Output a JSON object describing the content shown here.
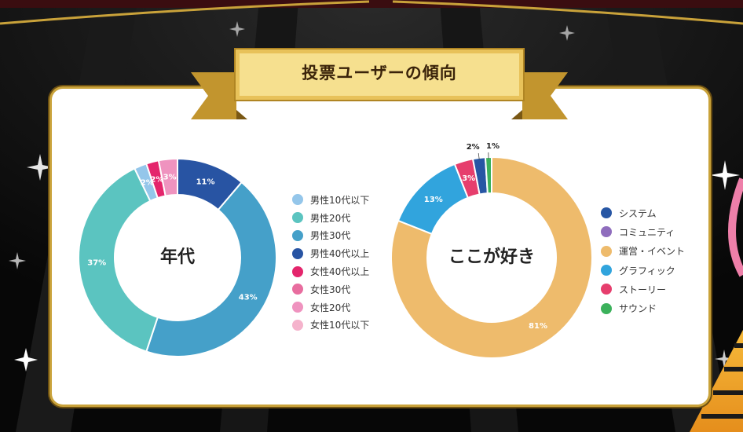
{
  "banner": {
    "title": "投票ユーザーの傾向"
  },
  "colors": {
    "card_border": "#c9a23a",
    "banner_gold": "#e8c25a"
  },
  "chart_data": [
    {
      "type": "pie",
      "title": "年代",
      "donut": true,
      "legend_position": "right",
      "categories": [
        "男性10代以下",
        "男性20代",
        "男性30代",
        "男性40代以上",
        "女性40代以上",
        "女性30代",
        "女性20代",
        "女性10代以下"
      ],
      "legend_colors": [
        "#94c6ea",
        "#5bc4c0",
        "#45a0c9",
        "#2854a3",
        "#e4256c",
        "#e86d9f",
        "#ef93bf",
        "#f5b3cc"
      ],
      "slices": [
        {
          "label": "男性40代以上",
          "value": 11,
          "text": "11%",
          "color": "#2854a3"
        },
        {
          "label": "男性30代",
          "value": 43,
          "text": "43%",
          "color": "#45a0c9"
        },
        {
          "label": "男性20代",
          "value": 37,
          "text": "37%",
          "color": "#5bc4c0"
        },
        {
          "label": "男性10代以下",
          "value": 2,
          "text": "2%",
          "color": "#94c6ea"
        },
        {
          "label": "女性40代以上",
          "value": 2,
          "text": "2%",
          "color": "#e4256c"
        },
        {
          "label": "女性20代",
          "value": 3,
          "text": "3%",
          "color": "#ef93bf"
        }
      ]
    },
    {
      "type": "pie",
      "title": "ここが好き",
      "donut": true,
      "legend_position": "right",
      "categories": [
        "システム",
        "コミュニティ",
        "運営・イベント",
        "グラフィック",
        "ストーリー",
        "サウンド"
      ],
      "legend_colors": [
        "#2756a4",
        "#8f6dbd",
        "#eebb6c",
        "#31a4dd",
        "#e63e6d",
        "#3bb15b"
      ],
      "slices": [
        {
          "label": "運営・イベント",
          "value": 81,
          "text": "81%",
          "color": "#eebb6c"
        },
        {
          "label": "グラフィック",
          "value": 13,
          "text": "13%",
          "color": "#31a4dd"
        },
        {
          "label": "ストーリー",
          "value": 3,
          "text": "3%",
          "color": "#e63e6d"
        },
        {
          "label": "システム",
          "value": 2,
          "text": "2%",
          "color": "#2756a4"
        },
        {
          "label": "サウンド",
          "value": 1,
          "text": "1%",
          "color": "#3bb15b"
        }
      ]
    }
  ]
}
